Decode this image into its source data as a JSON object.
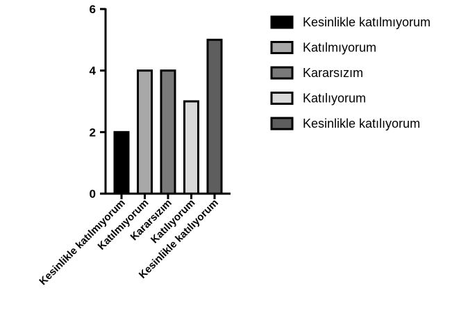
{
  "chart_data": {
    "type": "bar",
    "title": "",
    "xlabel": "",
    "ylabel": "",
    "categories": [
      "Kesinlikle katılmıyorum",
      "Katılmıyorum",
      "Kararsızım",
      "Katılıyorum",
      "Kesinlikle katılıyorum"
    ],
    "values": [
      2,
      4,
      4,
      3,
      5
    ],
    "colors": [
      "#000000",
      "#a8a8a8",
      "#7a7a7a",
      "#d9d9d9",
      "#5e5e5e"
    ],
    "ylim": [
      0,
      6
    ],
    "yticks": [
      0,
      2,
      4,
      6
    ],
    "grid": false,
    "legend": {
      "position": "right",
      "entries": [
        "Kesinlikle katılmıyorum",
        "Katılmıyorum",
        "Kararsızım",
        "Katılıyorum",
        "Kesinlikle katılıyorum"
      ]
    }
  }
}
